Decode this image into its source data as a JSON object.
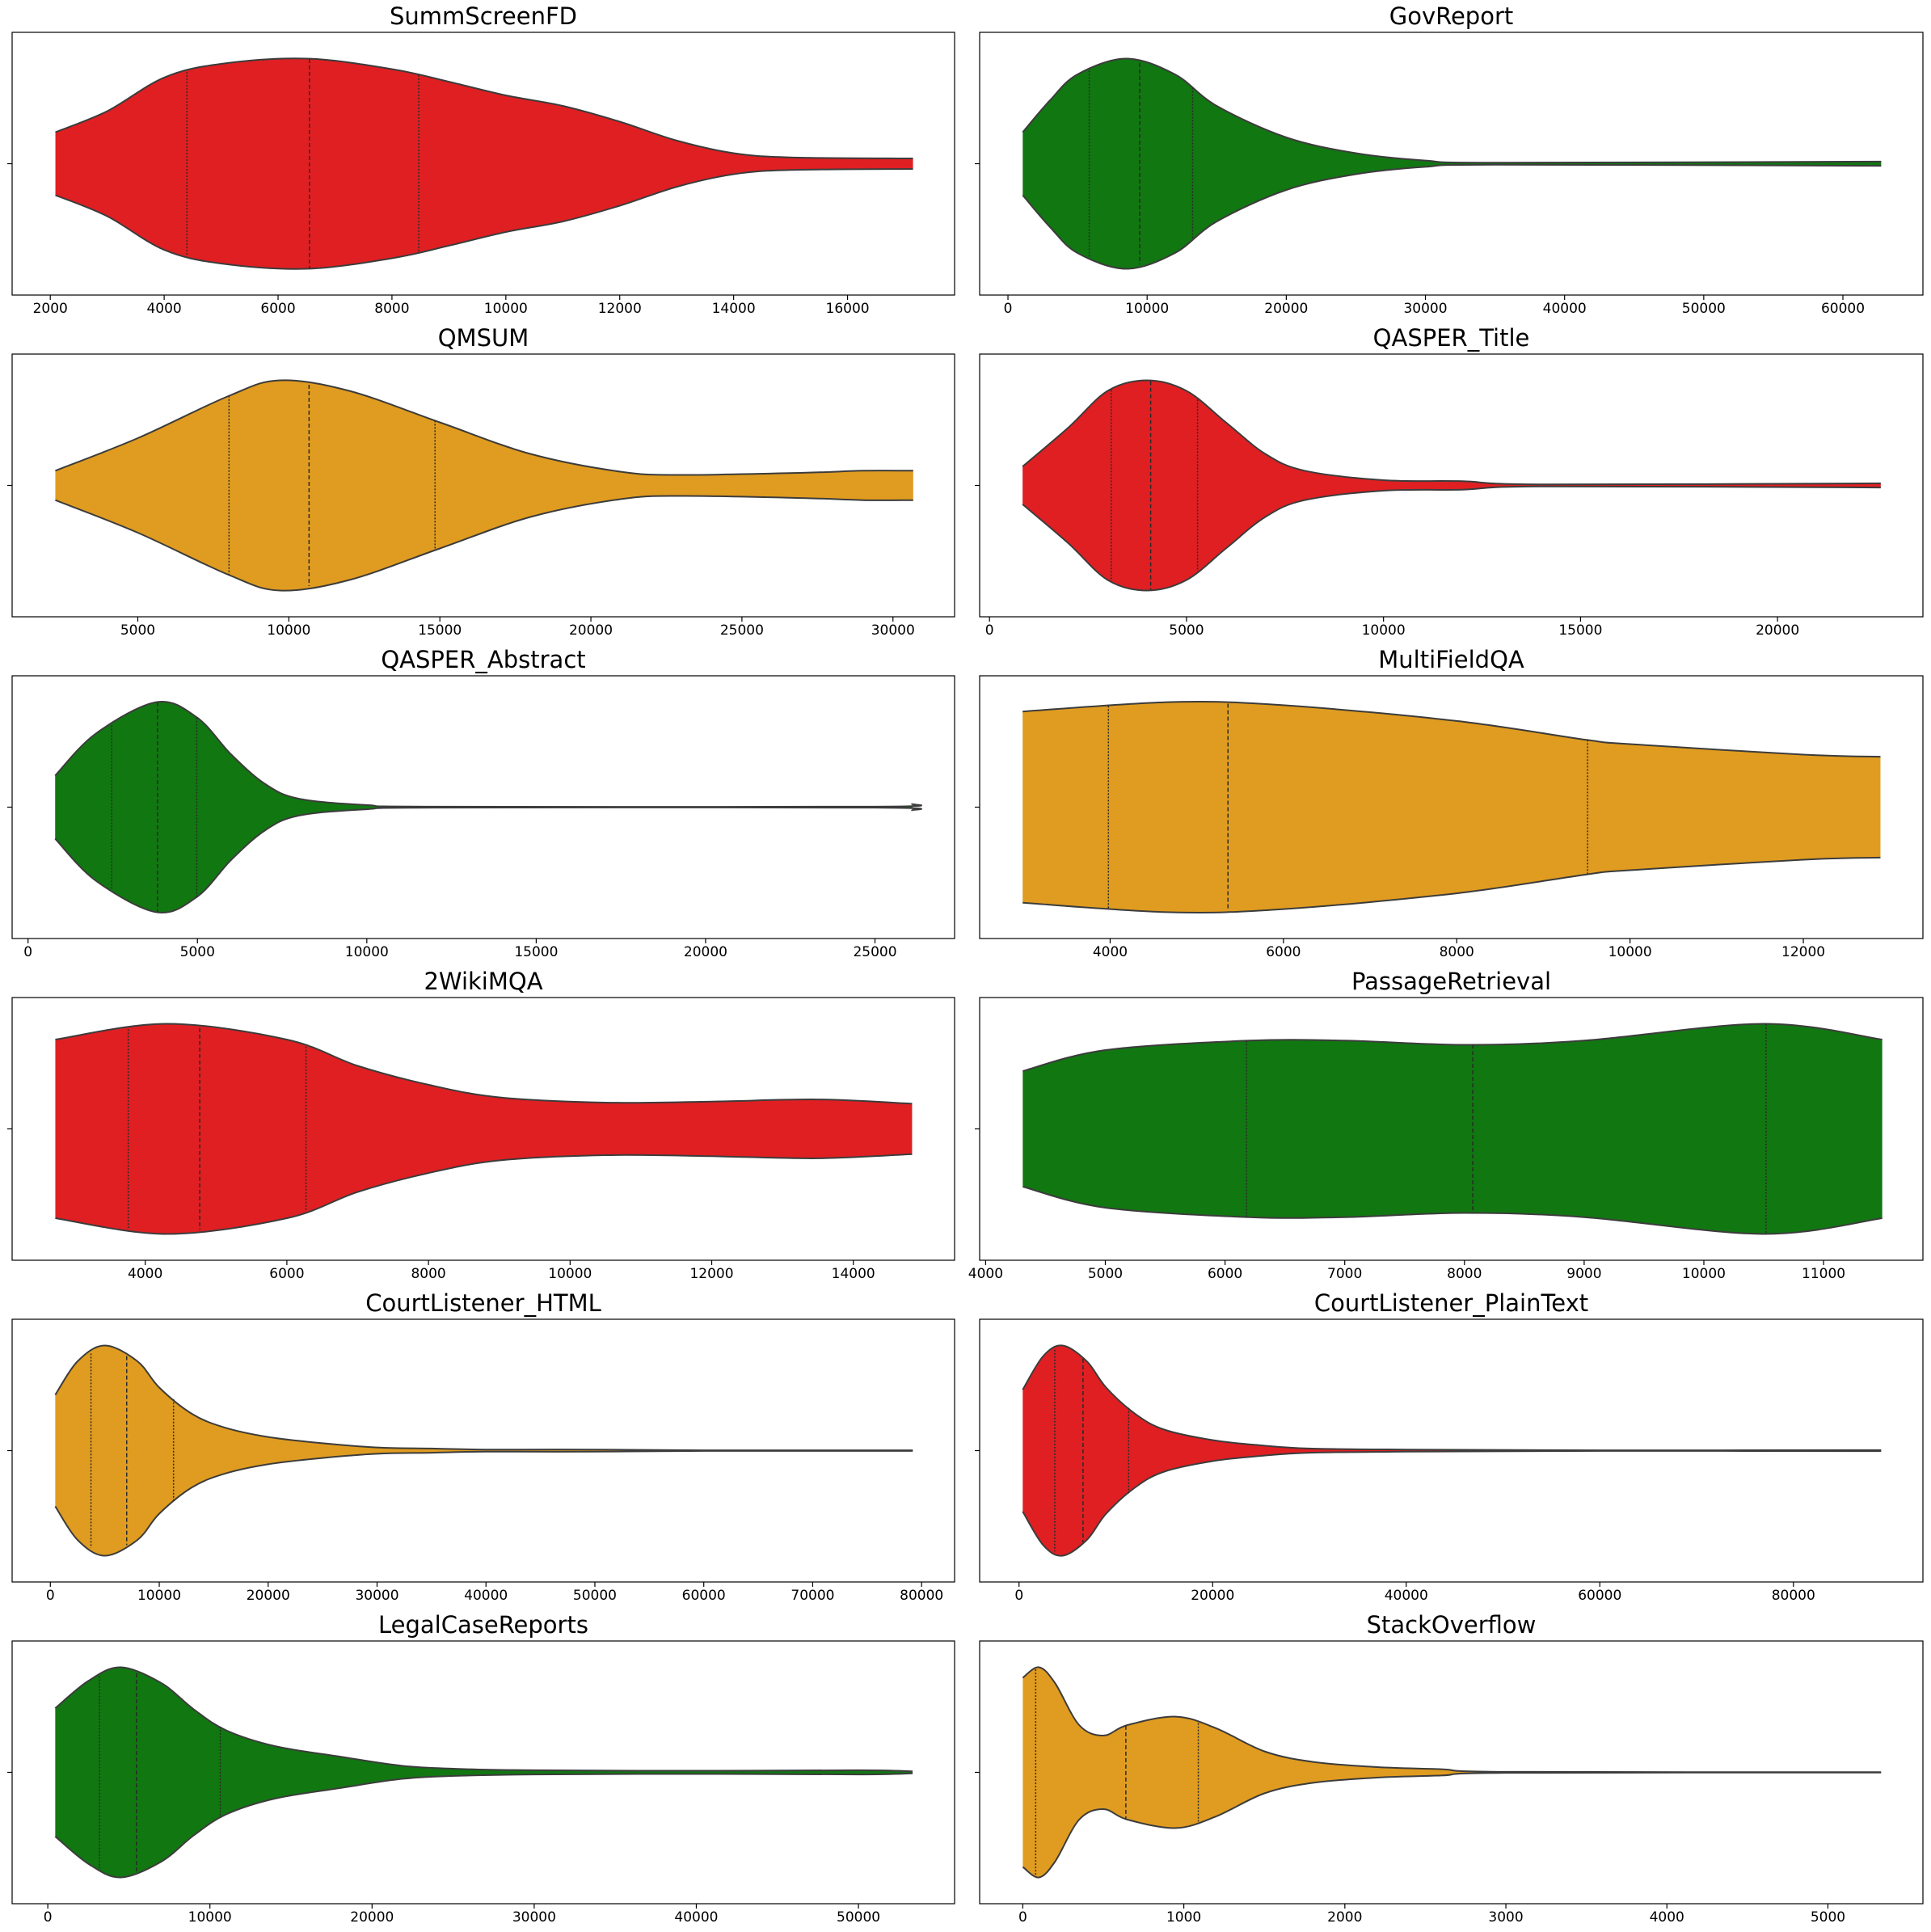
{
  "chart_data": [
    {
      "type": "violin",
      "title": "SummScreenFD",
      "color": "#e01f22",
      "x": [
        2090,
        3000,
        4000,
        5000,
        6500,
        8000,
        9000,
        10000,
        11000,
        12000,
        13000,
        14000,
        15000,
        17150
      ],
      "values": [
        0.3,
        0.5,
        0.82,
        0.95,
        1.0,
        0.9,
        0.78,
        0.65,
        0.55,
        0.4,
        0.22,
        0.1,
        0.06,
        0.05
      ],
      "quartiles": [
        4400,
        6550,
        8470
      ],
      "xlim": [
        1330,
        17880
      ],
      "xticks": [
        2000,
        4000,
        6000,
        8000,
        10000,
        12000,
        14000,
        16000
      ]
    },
    {
      "type": "violin",
      "title": "GovReport",
      "color": "#117711",
      "x": [
        1060,
        3000,
        5000,
        8500,
        12000,
        15000,
        20000,
        25000,
        30000,
        35000,
        62750
      ],
      "values": [
        0.3,
        0.6,
        0.85,
        1.0,
        0.85,
        0.55,
        0.25,
        0.1,
        0.03,
        0.01,
        0.02
      ],
      "quartiles": [
        5840,
        9470,
        13270
      ],
      "xlim": [
        -2035,
        65750
      ],
      "xticks": [
        0,
        10000,
        20000,
        30000,
        40000,
        50000,
        60000
      ]
    },
    {
      "type": "violin",
      "title": "QMSUM",
      "color": "#e09c20",
      "x": [
        2270,
        5000,
        8000,
        9700,
        12000,
        15000,
        18000,
        21000,
        23000,
        27000,
        29000,
        30670
      ],
      "values": [
        0.14,
        0.45,
        0.85,
        1.0,
        0.9,
        0.6,
        0.3,
        0.13,
        0.1,
        0.12,
        0.14,
        0.14
      ],
      "quartiles": [
        8020,
        10670,
        14840
      ],
      "xlim": [
        840,
        32040
      ],
      "xticks": [
        5000,
        10000,
        15000,
        20000,
        25000,
        30000
      ]
    },
    {
      "type": "violin",
      "title": "QASPER_Title",
      "color": "#e01f22",
      "x": [
        840,
        2000,
        3000,
        4000,
        5000,
        6000,
        7000,
        8000,
        10000,
        12000,
        14000,
        22620
      ],
      "values": [
        0.18,
        0.55,
        0.9,
        1.0,
        0.9,
        0.6,
        0.3,
        0.14,
        0.05,
        0.04,
        0.01,
        0.02
      ],
      "quartiles": [
        3090,
        4090,
        5280
      ],
      "xlim": [
        -250,
        23690
      ],
      "xticks": [
        0,
        5000,
        10000,
        15000,
        20000
      ]
    },
    {
      "type": "violin",
      "title": "QASPER_Abstract",
      "color": "#117711",
      "x": [
        800,
        2000,
        3800,
        5000,
        6000,
        7000,
        8000,
        10000,
        12000,
        25000,
        26110
      ],
      "values": [
        0.3,
        0.7,
        1.0,
        0.85,
        0.5,
        0.22,
        0.08,
        0.02,
        0.005,
        0.005,
        0.03
      ],
      "quartiles": [
        2470,
        3820,
        4980
      ],
      "xlim": [
        -470,
        27350
      ],
      "xticks": [
        0,
        5000,
        10000,
        15000,
        20000,
        25000
      ]
    },
    {
      "type": "violin",
      "title": "MultiFieldQA",
      "color": "#e09c20",
      "x": [
        2990,
        4700,
        6000,
        8000,
        9500,
        10000,
        12000,
        12890
      ],
      "values": [
        0.91,
        1.0,
        0.97,
        0.82,
        0.64,
        0.6,
        0.5,
        0.48
      ],
      "quartiles": [
        3980,
        5360,
        9510
      ],
      "xlim": [
        2494,
        13380
      ],
      "xticks": [
        4000,
        6000,
        8000,
        10000,
        12000
      ]
    },
    {
      "type": "violin",
      "title": "2WikiMQA",
      "color": "#e01f22",
      "x": [
        2730,
        4300,
        6000,
        7000,
        8000,
        9000,
        10500,
        12000,
        13500,
        14830
      ],
      "values": [
        0.85,
        1.0,
        0.85,
        0.6,
        0.42,
        0.3,
        0.25,
        0.26,
        0.28,
        0.24
      ],
      "quartiles": [
        3760,
        4770,
        6270
      ],
      "xlim": [
        2120,
        15430
      ],
      "xticks": [
        4000,
        6000,
        8000,
        10000,
        12000,
        14000
      ]
    },
    {
      "type": "violin",
      "title": "PassageRetrieval",
      "color": "#117711",
      "x": [
        4310,
        5000,
        6200,
        7000,
        8000,
        9000,
        10500,
        11490
      ],
      "values": [
        0.55,
        0.75,
        0.84,
        0.84,
        0.8,
        0.84,
        1.0,
        0.85
      ],
      "quartiles": [
        6180,
        8070,
        10520
      ],
      "xlim": [
        3950,
        11830
      ],
      "xticks": [
        4000,
        5000,
        6000,
        7000,
        8000,
        9000,
        10000,
        11000
      ]
    },
    {
      "type": "violin",
      "title": "CourtListener_HTML",
      "color": "#e09c20",
      "x": [
        450,
        2500,
        5000,
        8000,
        10000,
        13000,
        16000,
        20000,
        25000,
        30000,
        35000,
        40000,
        50000,
        60000,
        79190
      ],
      "values": [
        0.53,
        0.85,
        1.0,
        0.85,
        0.6,
        0.35,
        0.22,
        0.13,
        0.07,
        0.03,
        0.02,
        0.01,
        0.01,
        0.003,
        0.003
      ],
      "quartiles": [
        3730,
        7010,
        11310
      ],
      "xlim": [
        -3510,
        83030
      ],
      "xticks": [
        0,
        10000,
        20000,
        30000,
        40000,
        50000,
        60000,
        70000,
        80000
      ]
    },
    {
      "type": "violin",
      "title": "CourtListener_PlainText",
      "color": "#e01f22",
      "x": [
        380,
        2500,
        4500,
        7000,
        9000,
        12000,
        15000,
        20000,
        25000,
        30000,
        40000,
        60000,
        89060
      ],
      "values": [
        0.58,
        0.9,
        1.0,
        0.85,
        0.6,
        0.35,
        0.2,
        0.1,
        0.05,
        0.02,
        0.01,
        0.003,
        0.005
      ],
      "quartiles": [
        3690,
        6610,
        11320
      ],
      "xlim": [
        -4070,
        93380
      ],
      "xticks": [
        0,
        20000,
        40000,
        60000,
        80000
      ]
    },
    {
      "type": "violin",
      "title": "LegalCaseReports",
      "color": "#117711",
      "x": [
        460,
        2500,
        4500,
        7000,
        9000,
        11000,
        14000,
        18000,
        22000,
        26000,
        30000,
        40000,
        50000,
        53340
      ],
      "values": [
        0.61,
        0.87,
        1.0,
        0.85,
        0.6,
        0.4,
        0.25,
        0.15,
        0.06,
        0.03,
        0.02,
        0.015,
        0.02,
        0.01
      ],
      "quartiles": [
        3190,
        5470,
        10640
      ],
      "xlim": [
        -2200,
        55930
      ],
      "xticks": [
        0,
        10000,
        20000,
        30000,
        40000,
        50000
      ]
    },
    {
      "type": "violin",
      "title": "StackOverflow",
      "color": "#e09c20",
      "x": [
        0,
        100,
        200,
        350,
        500,
        650,
        950,
        1200,
        1500,
        1800,
        2200,
        2600,
        3000,
        5330
      ],
      "values": [
        0.9,
        1.0,
        0.85,
        0.45,
        0.35,
        0.45,
        0.53,
        0.42,
        0.2,
        0.1,
        0.05,
        0.03,
        0.005,
        0.002
      ],
      "quartiles": [
        80,
        640,
        1090
      ],
      "xlim": [
        -268,
        5590
      ],
      "xticks": [
        0,
        1000,
        2000,
        3000,
        4000,
        5000
      ]
    }
  ]
}
